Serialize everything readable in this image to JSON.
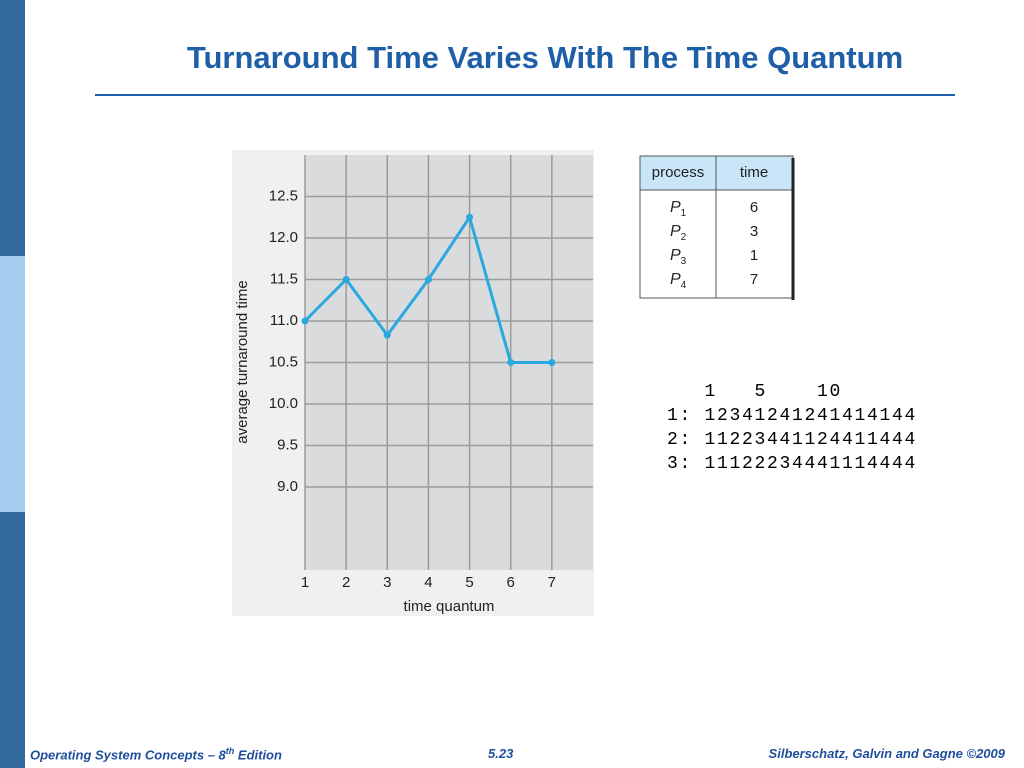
{
  "header": {
    "title": "Turnaround Time Varies With The Time Quantum"
  },
  "chart_data": {
    "type": "line",
    "x_label": "time quantum",
    "y_label": "average turnaround time",
    "x": [
      1,
      2,
      3,
      4,
      5,
      6,
      7
    ],
    "series": [
      {
        "color": "#29a9e0",
        "values": [
          11.0,
          11.5,
          10.83,
          11.5,
          12.25,
          10.5,
          10.5
        ]
      }
    ],
    "xlim": [
      1,
      8
    ],
    "xticks": [
      1,
      2,
      3,
      4,
      5,
      6,
      7
    ],
    "ylim": [
      8,
      13
    ],
    "yticks": [
      {
        "value": 9,
        "label": "9.0"
      },
      9.5,
      {
        "value": 10,
        "label": "10.0"
      },
      10.5,
      {
        "value": 11,
        "label": "11.0"
      },
      11.5,
      {
        "value": 12,
        "label": "12.0"
      },
      12.5
    ],
    "grid": true
  },
  "table": {
    "columns": [
      "process",
      "time"
    ],
    "rows": [
      {
        "process": "P",
        "sub": "1",
        "time": 6
      },
      {
        "process": "P",
        "sub": "2",
        "time": 3
      },
      {
        "process": "P",
        "sub": "3",
        "time": 1
      },
      {
        "process": "P",
        "sub": "4",
        "time": 7
      }
    ]
  },
  "schedule": {
    "lines": [
      "   1   5    10",
      "1: 12341241241414144",
      "2: 11223441124411444",
      "3: 11122234441114444"
    ]
  },
  "footer": {
    "book": "Operating System Concepts – 8",
    "sup": "th",
    "edition": " Edition",
    "page": "5.23",
    "authors": "Silberschatz, Galvin and Gagne ©2009"
  }
}
